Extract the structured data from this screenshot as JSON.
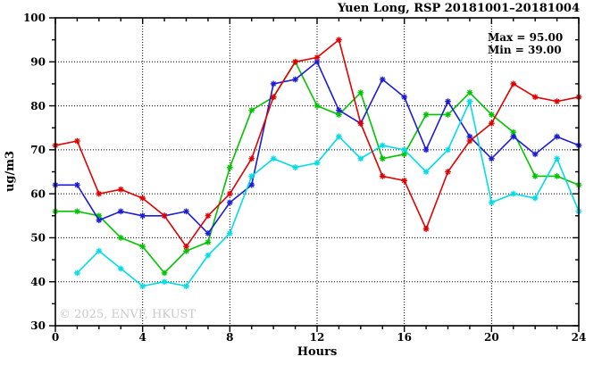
{
  "window": {
    "title": "Yuen Long, RSP 20181001–20181004"
  },
  "chart_data": {
    "type": "line",
    "title": "Yuen Long, RSP 20181001–20181004",
    "xlabel": "Hours",
    "ylabel": "ug/m3",
    "xlim": [
      0,
      24
    ],
    "ylim": [
      30,
      100
    ],
    "x_major_ticks": [
      0,
      4,
      8,
      12,
      16,
      20,
      24
    ],
    "x_minor_step": 1,
    "y_major_ticks": [
      30,
      40,
      50,
      60,
      70,
      80,
      90,
      100
    ],
    "y_minor_step": 5,
    "grid": "dotted black gridlines at major ticks, boxed axes with mirrored ticks",
    "legend_position": "none",
    "x": [
      0,
      1,
      2,
      3,
      4,
      5,
      6,
      7,
      8,
      9,
      10,
      11,
      12,
      13,
      14,
      15,
      16,
      17,
      18,
      19,
      20,
      21,
      22,
      23,
      24
    ],
    "series": [
      {
        "name": "day-1-red",
        "color": "#e10000",
        "values": [
          71,
          72,
          60,
          61,
          59,
          55,
          48,
          55,
          60,
          68,
          82,
          90,
          91,
          95,
          76,
          64,
          63,
          52,
          65,
          72,
          76,
          85,
          82,
          81,
          82
        ]
      },
      {
        "name": "day-2-blue",
        "color": "#1c1cd6",
        "values": [
          62,
          62,
          54,
          56,
          55,
          55,
          56,
          51,
          58,
          62,
          85,
          86,
          90,
          79,
          76,
          86,
          82,
          70,
          81,
          73,
          68,
          73,
          69,
          73,
          71
        ]
      },
      {
        "name": "day-3-green",
        "color": "#00c400",
        "values": [
          56,
          56,
          55,
          50,
          48,
          42,
          47,
          49,
          66,
          79,
          82,
          90,
          80,
          78,
          83,
          68,
          69,
          78,
          78,
          83,
          78,
          74,
          64,
          64,
          62
        ]
      },
      {
        "name": "day-4-cyan",
        "color": "#00dce8",
        "values": [
          null,
          42,
          47,
          43,
          39,
          40,
          39,
          46,
          51,
          64,
          68,
          66,
          67,
          73,
          68,
          71,
          70,
          65,
          70,
          81,
          58,
          60,
          59,
          68,
          56
        ]
      }
    ],
    "annotations": {
      "max_label": "Max = 95.00",
      "min_label": "Min = 39.00"
    },
    "watermark": "© 2025, ENVF, HKUST"
  }
}
